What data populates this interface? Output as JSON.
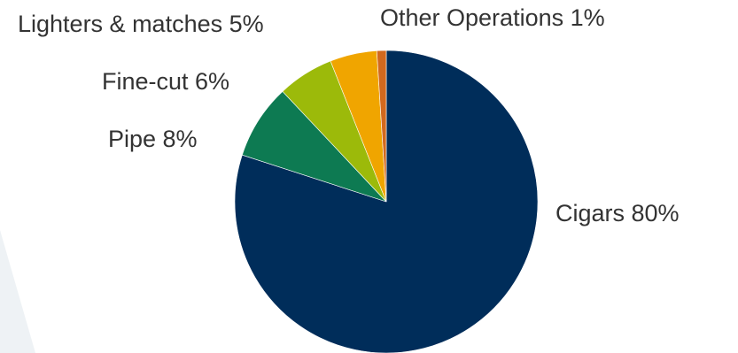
{
  "chart_data": {
    "type": "pie",
    "title": "",
    "start": "12 o'clock",
    "direction": "clockwise",
    "slices": [
      {
        "label": "Cigars 80%",
        "value": 80,
        "color": "#002d5a"
      },
      {
        "label": "Pipe 8%",
        "value": 8,
        "color": "#0d7a52"
      },
      {
        "label": "Fine-cut 6%",
        "value": 6,
        "color": "#9cba0a"
      },
      {
        "label": "Lighters & matches 5%",
        "value": 5,
        "color": "#f0a500"
      },
      {
        "label": "Other Operations 1%",
        "value": 1,
        "color": "#d2691e"
      }
    ]
  },
  "colors": {
    "background_shape": "#eef2f5",
    "label_text": "#333333"
  }
}
